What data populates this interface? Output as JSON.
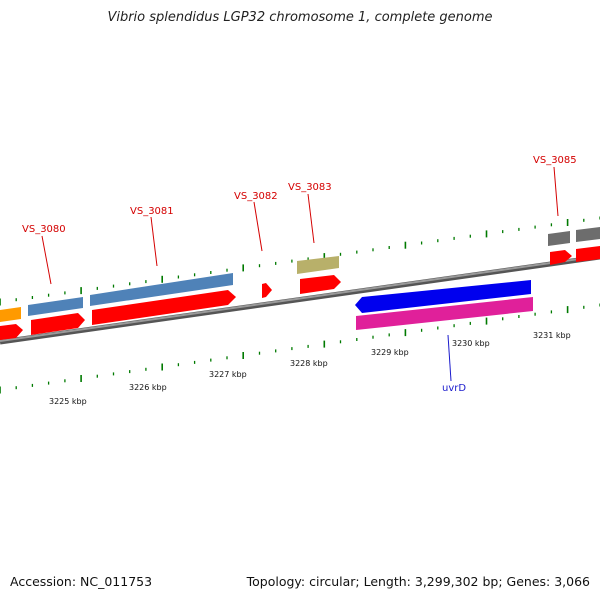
{
  "title": "Vibrio splendidus LGP32 chromosome 1, complete genome",
  "footer": {
    "accession": "Accession: NC_011753",
    "summary": "Topology: circular; Length: 3,299,302 bp; Genes: 3,066"
  },
  "scale_labels": [
    "3225 kbp",
    "3226 kbp",
    "3227 kbp",
    "3228 kbp",
    "3229 kbp",
    "3230 kbp",
    "3231 kbp"
  ],
  "gene_labels": [
    {
      "text": "VS_3080",
      "color": "#d40000"
    },
    {
      "text": "VS_3081",
      "color": "#d40000"
    },
    {
      "text": "VS_3082",
      "color": "#d40000"
    },
    {
      "text": "VS_3083",
      "color": "#d40000"
    },
    {
      "text": "VS_3085",
      "color": "#d40000"
    },
    {
      "text": "uvrD",
      "color": "#1a1acc"
    }
  ],
  "colors": {
    "cds": "#ff0000",
    "gene_steelblue": "#4f82b8",
    "gene_khaki": "#b8b06a",
    "gene_gray": "#6d6d6d",
    "gene_orange": "#ff9a00",
    "uvrD_blue": "#0000ee",
    "uvrD_magenta": "#e0209a",
    "tick": "#007a00",
    "backbone": "#7a7a7a"
  }
}
